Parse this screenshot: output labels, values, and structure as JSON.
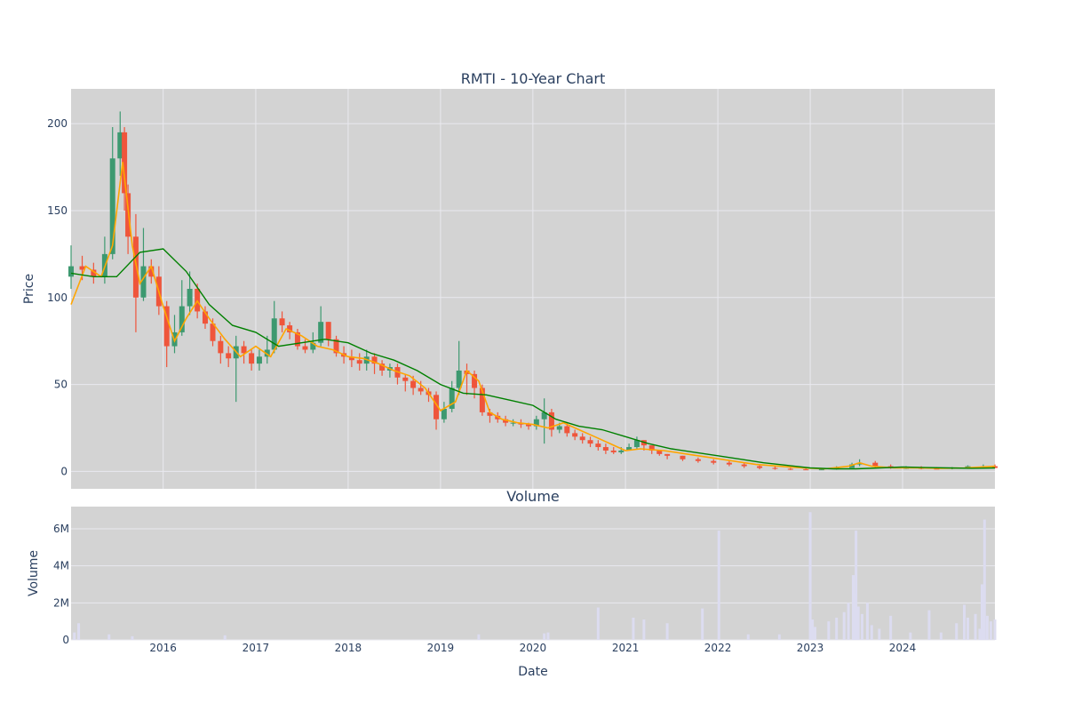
{
  "colors": {
    "plot_bg": "#d3d3d3",
    "grid": "#e9e9ef",
    "up": "#3d9970",
    "down": "#ef553b",
    "ma_short": "#ffa500",
    "ma_long": "#008000",
    "volume": "#dcdcf0",
    "text": "#2a3f5f"
  },
  "chart_data": [
    {
      "type": "line",
      "title": "RMTI - 10-Year Chart",
      "ylabel": "Price",
      "xlim": [
        "2015-01-02",
        "2024-12-31"
      ],
      "ylim": [
        -10,
        220
      ],
      "yticks": [
        0,
        50,
        100,
        150,
        200
      ],
      "xticks": [
        {
          "date": "2016-01-01",
          "label": "2016"
        },
        {
          "date": "2017-01-01",
          "label": "2017"
        },
        {
          "date": "2018-01-01",
          "label": "2018"
        },
        {
          "date": "2019-01-01",
          "label": "2019"
        },
        {
          "date": "2020-01-01",
          "label": "2020"
        },
        {
          "date": "2021-01-01",
          "label": "2021"
        },
        {
          "date": "2022-01-01",
          "label": "2022"
        },
        {
          "date": "2023-01-01",
          "label": "2023"
        },
        {
          "date": "2024-01-01",
          "label": "2024"
        }
      ],
      "grid": true,
      "series": [
        {
          "kind": "candlestick",
          "x": [
            "2015-01-02",
            "2015-02-15",
            "2015-04-01",
            "2015-05-15",
            "2015-06-15",
            "2015-07-15",
            "2015-08-01",
            "2015-08-15",
            "2015-09-15",
            "2015-10-15",
            "2015-11-15",
            "2015-12-15",
            "2016-01-15",
            "2016-02-15",
            "2016-03-15",
            "2016-04-15",
            "2016-05-15",
            "2016-06-15",
            "2016-07-15",
            "2016-08-15",
            "2016-09-15",
            "2016-10-15",
            "2016-11-15",
            "2016-12-15",
            "2017-01-15",
            "2017-02-15",
            "2017-03-15",
            "2017-04-15",
            "2017-05-15",
            "2017-06-15",
            "2017-07-15",
            "2017-08-15",
            "2017-09-15",
            "2017-10-15",
            "2017-11-15",
            "2017-12-15",
            "2018-01-15",
            "2018-02-15",
            "2018-03-15",
            "2018-04-15",
            "2018-05-15",
            "2018-06-15",
            "2018-07-15",
            "2018-08-15",
            "2018-09-15",
            "2018-10-15",
            "2018-11-15",
            "2018-12-15",
            "2019-01-15",
            "2019-02-15",
            "2019-03-15",
            "2019-04-15",
            "2019-05-15",
            "2019-06-15",
            "2019-07-15",
            "2019-08-15",
            "2019-09-15",
            "2019-10-15",
            "2019-11-15",
            "2019-12-15",
            "2020-01-15",
            "2020-02-15",
            "2020-03-15",
            "2020-04-15",
            "2020-05-15",
            "2020-06-15",
            "2020-07-15",
            "2020-08-15",
            "2020-09-15",
            "2020-10-15",
            "2020-11-15",
            "2020-12-15",
            "2021-01-15",
            "2021-02-15",
            "2021-03-15",
            "2021-04-15",
            "2021-05-15",
            "2021-06-15",
            "2021-08-15",
            "2021-10-15",
            "2021-12-15",
            "2022-02-15",
            "2022-04-15",
            "2022-06-15",
            "2022-08-15",
            "2022-10-15",
            "2022-12-15",
            "2023-02-15",
            "2023-04-15",
            "2023-06-15",
            "2023-07-15",
            "2023-09-15",
            "2023-11-15",
            "2024-01-15",
            "2024-03-15",
            "2024-05-15",
            "2024-07-15",
            "2024-09-15",
            "2024-11-15",
            "2024-12-31"
          ],
          "open": [
            112,
            118,
            116,
            112,
            125,
            180,
            195,
            160,
            135,
            100,
            118,
            112,
            95,
            72,
            80,
            95,
            105,
            92,
            85,
            75,
            68,
            65,
            72,
            68,
            62,
            66,
            70,
            88,
            84,
            80,
            72,
            70,
            74,
            86,
            76,
            68,
            66,
            64,
            62,
            66,
            62,
            58,
            60,
            54,
            52,
            48,
            46,
            44,
            30,
            36,
            48,
            58,
            56,
            48,
            34,
            32,
            30,
            28,
            28,
            27,
            26,
            30,
            34,
            24,
            26,
            22,
            20,
            18,
            16,
            14,
            12,
            11,
            12,
            14,
            18,
            15,
            12,
            10,
            9,
            7,
            6,
            5,
            4,
            3,
            2,
            1.5,
            1.2,
            1,
            1.2,
            2,
            4,
            5,
            3,
            2,
            2,
            1.6,
            1.5,
            2,
            3,
            3
          ],
          "close": [
            118,
            116,
            112,
            125,
            180,
            195,
            160,
            135,
            100,
            118,
            112,
            95,
            72,
            80,
            95,
            105,
            92,
            85,
            75,
            68,
            65,
            72,
            68,
            62,
            66,
            70,
            88,
            84,
            80,
            72,
            70,
            74,
            86,
            76,
            68,
            66,
            64,
            62,
            66,
            62,
            58,
            60,
            54,
            52,
            48,
            46,
            44,
            30,
            36,
            48,
            58,
            56,
            48,
            34,
            32,
            30,
            28,
            28,
            27,
            26,
            30,
            34,
            24,
            26,
            22,
            20,
            18,
            16,
            14,
            12,
            11,
            12,
            14,
            18,
            15,
            12,
            10,
            9,
            7,
            6,
            5,
            4,
            3,
            2,
            1.5,
            1.2,
            1,
            1.2,
            2,
            4,
            5,
            3,
            2,
            2,
            1.6,
            1.5,
            2,
            3,
            3,
            2
          ],
          "high": [
            130,
            124,
            120,
            135,
            198,
            207,
            198,
            165,
            148,
            140,
            122,
            118,
            98,
            90,
            110,
            115,
            108,
            95,
            88,
            78,
            72,
            78,
            75,
            70,
            70,
            78,
            98,
            92,
            86,
            82,
            76,
            80,
            95,
            86,
            78,
            72,
            70,
            68,
            70,
            68,
            64,
            62,
            62,
            56,
            55,
            52,
            48,
            46,
            40,
            52,
            75,
            62,
            58,
            50,
            36,
            34,
            32,
            30,
            30,
            28,
            32,
            42,
            36,
            28,
            28,
            24,
            22,
            20,
            18,
            16,
            14,
            14,
            16,
            20,
            18,
            14,
            12,
            10,
            9,
            8,
            7,
            6,
            5,
            4,
            3,
            2,
            2,
            2,
            3,
            5,
            7,
            6,
            4,
            3,
            3,
            2.5,
            2.5,
            3.5,
            4,
            4
          ],
          "low": [
            105,
            110,
            108,
            108,
            122,
            170,
            150,
            125,
            80,
            98,
            108,
            90,
            60,
            68,
            78,
            90,
            88,
            82,
            72,
            62,
            60,
            40,
            62,
            58,
            58,
            62,
            68,
            80,
            76,
            70,
            68,
            68,
            72,
            72,
            66,
            62,
            60,
            58,
            58,
            56,
            55,
            54,
            50,
            46,
            44,
            44,
            40,
            24,
            28,
            34,
            44,
            44,
            42,
            32,
            28,
            28,
            26,
            26,
            25,
            24,
            24,
            16,
            20,
            22,
            20,
            18,
            16,
            14,
            12,
            10,
            10,
            10,
            12,
            13,
            12,
            10,
            9,
            7,
            6,
            5,
            4,
            3,
            2,
            1.2,
            1,
            0.8,
            0.8,
            0.8,
            1,
            2,
            3,
            2,
            1.5,
            1.4,
            1.2,
            1.2,
            1.2,
            1.8,
            2,
            1.8
          ]
        },
        {
          "kind": "line",
          "x": [
            "2015-01-02",
            "2015-03-01",
            "2015-05-01",
            "2015-06-15",
            "2015-07-25",
            "2015-09-01",
            "2015-10-01",
            "2015-11-15",
            "2016-01-01",
            "2016-02-15",
            "2016-04-01",
            "2016-05-15",
            "2016-07-01",
            "2016-09-01",
            "2016-11-01",
            "2017-01-01",
            "2017-03-01",
            "2017-05-01",
            "2017-07-01",
            "2017-09-01",
            "2017-11-01",
            "2018-01-01",
            "2018-03-01",
            "2018-05-01",
            "2018-07-01",
            "2018-09-01",
            "2018-11-01",
            "2019-01-01",
            "2019-03-01",
            "2019-04-15",
            "2019-06-01",
            "2019-07-15",
            "2019-09-01",
            "2019-11-01",
            "2020-01-01",
            "2020-03-01",
            "2020-05-01",
            "2020-07-01",
            "2020-09-01",
            "2020-11-01",
            "2021-01-01",
            "2021-03-01",
            "2021-06-01",
            "2021-09-01",
            "2021-12-01",
            "2022-03-01",
            "2022-06-01",
            "2022-09-01",
            "2022-12-01",
            "2023-03-01",
            "2023-06-01",
            "2023-07-15",
            "2023-09-01",
            "2023-12-01",
            "2024-03-01",
            "2024-06-01",
            "2024-09-01",
            "2024-12-31"
          ],
          "y": [
            96,
            118,
            112,
            130,
            178,
            130,
            108,
            118,
            95,
            75,
            88,
            98,
            88,
            76,
            66,
            72,
            66,
            82,
            78,
            72,
            70,
            66,
            65,
            62,
            58,
            55,
            48,
            35,
            40,
            58,
            52,
            34,
            30,
            28,
            27,
            25,
            28,
            24,
            20,
            16,
            12,
            13,
            12,
            10,
            8,
            6,
            4,
            3,
            2,
            1.5,
            3,
            5,
            3,
            2,
            2,
            1.8,
            2,
            3
          ]
        },
        {
          "kind": "line",
          "x": [
            "2015-01-02",
            "2015-04-01",
            "2015-07-01",
            "2015-10-01",
            "2016-01-01",
            "2016-04-01",
            "2016-07-01",
            "2016-10-01",
            "2017-01-01",
            "2017-04-01",
            "2017-07-01",
            "2017-10-01",
            "2018-01-01",
            "2018-04-01",
            "2018-07-01",
            "2018-10-01",
            "2019-01-01",
            "2019-04-01",
            "2019-07-01",
            "2019-10-01",
            "2020-01-01",
            "2020-04-01",
            "2020-07-01",
            "2020-10-01",
            "2021-01-01",
            "2021-04-01",
            "2021-07-01",
            "2021-10-01",
            "2022-01-01",
            "2022-04-01",
            "2022-07-01",
            "2022-10-01",
            "2023-01-01",
            "2023-04-01",
            "2023-07-01",
            "2023-10-01",
            "2024-01-01",
            "2024-04-01",
            "2024-07-01",
            "2024-10-01",
            "2024-12-31"
          ],
          "y": [
            114,
            112,
            112,
            126,
            128,
            115,
            96,
            84,
            80,
            72,
            74,
            76,
            74,
            68,
            64,
            58,
            50,
            45,
            44,
            41,
            38,
            30,
            26,
            24,
            20,
            16,
            13,
            11,
            9,
            7,
            5,
            3.5,
            2,
            1.5,
            1.5,
            2,
            2.5,
            2.2,
            2,
            1.8,
            2
          ]
        }
      ]
    },
    {
      "type": "bar",
      "title": "Volume",
      "xlabel": "Date",
      "ylabel": "Volume",
      "ylim": [
        0,
        7200000
      ],
      "yticks": [
        {
          "value": 0,
          "label": "0"
        },
        {
          "value": 2000000,
          "label": "2M"
        },
        {
          "value": 4000000,
          "label": "4M"
        },
        {
          "value": 6000000,
          "label": "6M"
        }
      ],
      "x": [
        "2015-01-15",
        "2015-02-01",
        "2015-06-01",
        "2015-09-01",
        "2016-09-01",
        "2019-06-01",
        "2020-02-15",
        "2020-03-01",
        "2020-09-15",
        "2021-02-01",
        "2021-03-15",
        "2021-06-15",
        "2021-11-01",
        "2022-01-05",
        "2022-05-01",
        "2022-09-01",
        "2023-01-01",
        "2023-01-10",
        "2023-01-20",
        "2023-03-15",
        "2023-04-15",
        "2023-05-15",
        "2023-06-01",
        "2023-06-20",
        "2023-06-25",
        "2023-07-01",
        "2023-07-10",
        "2023-07-25",
        "2023-08-15",
        "2023-09-01",
        "2023-10-01",
        "2023-11-15",
        "2024-02-01",
        "2024-04-15",
        "2024-06-01",
        "2024-08-01",
        "2024-09-01",
        "2024-09-15",
        "2024-10-15",
        "2024-11-01",
        "2024-11-10",
        "2024-11-20",
        "2024-12-01",
        "2024-12-15",
        "2024-12-31"
      ],
      "values": [
        400000,
        900000,
        300000,
        200000,
        250000,
        300000,
        350000,
        400000,
        1750000,
        1200000,
        1100000,
        900000,
        1700000,
        5900000,
        300000,
        300000,
        6900000,
        1100000,
        700000,
        1000000,
        1200000,
        1500000,
        2000000,
        3500000,
        2500000,
        5900000,
        1800000,
        1400000,
        2000000,
        800000,
        600000,
        1300000,
        400000,
        1600000,
        400000,
        900000,
        1900000,
        1200000,
        1400000,
        600000,
        3000000,
        6500000,
        1300000,
        1000000,
        1100000
      ]
    }
  ]
}
